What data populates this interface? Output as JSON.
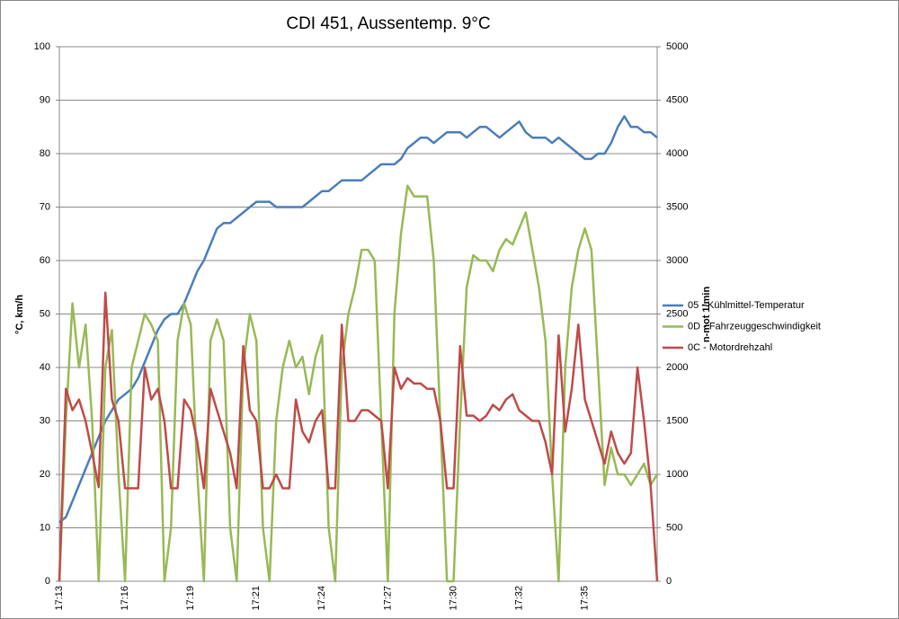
{
  "chart_data": {
    "type": "line",
    "title": "CDI 451, Aussentemp. 9°C",
    "y_label": "°C, km/h",
    "y2_label": "n-mot 1/min",
    "categories": [
      "17:13",
      null,
      null,
      null,
      null,
      null,
      null,
      null,
      null,
      null,
      "17:16",
      null,
      null,
      null,
      null,
      null,
      null,
      null,
      null,
      null,
      "17:19",
      null,
      null,
      null,
      null,
      null,
      null,
      null,
      null,
      null,
      "17:21",
      null,
      null,
      null,
      null,
      null,
      null,
      null,
      null,
      null,
      "17:24",
      null,
      null,
      null,
      null,
      null,
      null,
      null,
      null,
      null,
      "17:27",
      null,
      null,
      null,
      null,
      null,
      null,
      null,
      null,
      null,
      "17:30",
      null,
      null,
      null,
      null,
      null,
      null,
      null,
      null,
      null,
      "17:32",
      null,
      null,
      null,
      null,
      null,
      null,
      null,
      null,
      null,
      "17:35",
      null,
      null,
      null,
      null,
      null,
      null,
      null,
      null,
      null,
      null,
      null
    ],
    "ylim": [
      0,
      100
    ],
    "yticks": [
      0,
      10,
      20,
      30,
      40,
      50,
      60,
      70,
      80,
      90,
      100
    ],
    "y2lim": [
      0,
      5000
    ],
    "y2ticks": [
      0,
      500,
      1000,
      1500,
      2000,
      2500,
      3000,
      3500,
      4000,
      4500,
      5000
    ],
    "grid": true,
    "legend": "right",
    "series": [
      {
        "name": "05 - Kühlmittel-Temperatur",
        "color": "#4a7ebb",
        "values": [
          11,
          12,
          15,
          18,
          21,
          24,
          27,
          30,
          32,
          34,
          35,
          36,
          38,
          41,
          44,
          47,
          49,
          50,
          50,
          52,
          55,
          58,
          60,
          63,
          66,
          67,
          67,
          68,
          69,
          70,
          71,
          71,
          71,
          70,
          70,
          70,
          70,
          70,
          71,
          72,
          73,
          73,
          74,
          75,
          75,
          75,
          75,
          76,
          77,
          78,
          78,
          78,
          79,
          81,
          82,
          83,
          83,
          82,
          83,
          84,
          84,
          84,
          83,
          84,
          85,
          85,
          84,
          83,
          84,
          85,
          86,
          84,
          83,
          83,
          83,
          82,
          83,
          82,
          81,
          80,
          79,
          79,
          80,
          80,
          82,
          85,
          87,
          85,
          85,
          84,
          84,
          83
        ]
      },
      {
        "name": "0D - Fahrzeuggeschwindigkeit",
        "color": "#98b954",
        "values": [
          0,
          30,
          52,
          40,
          48,
          30,
          0,
          40,
          47,
          20,
          0,
          40,
          45,
          50,
          48,
          45,
          0,
          10,
          45,
          52,
          48,
          20,
          0,
          45,
          49,
          45,
          10,
          0,
          40,
          50,
          45,
          10,
          0,
          30,
          40,
          45,
          40,
          42,
          35,
          42,
          46,
          10,
          0,
          40,
          50,
          55,
          62,
          62,
          60,
          30,
          0,
          50,
          65,
          74,
          72,
          72,
          72,
          60,
          30,
          0,
          0,
          30,
          55,
          61,
          60,
          60,
          58,
          62,
          64,
          63,
          66,
          69,
          62,
          55,
          45,
          20,
          0,
          40,
          55,
          62,
          66,
          62,
          40,
          18,
          25,
          20,
          20,
          18,
          20,
          22,
          18,
          20
        ]
      },
      {
        "name": "0C - Motordrehzahl",
        "color": "#be4b48",
        "axis": "y2",
        "values": [
          0,
          1800,
          1600,
          1700,
          1500,
          1200,
          880,
          2700,
          1700,
          1500,
          870,
          870,
          870,
          2000,
          1700,
          1800,
          1500,
          870,
          870,
          1700,
          1600,
          1300,
          870,
          1800,
          1600,
          1400,
          1200,
          870,
          2200,
          1600,
          1500,
          870,
          870,
          1000,
          870,
          870,
          1700,
          1400,
          1300,
          1500,
          1600,
          870,
          870,
          2400,
          1500,
          1500,
          1600,
          1600,
          1550,
          1500,
          870,
          2000,
          1800,
          1900,
          1850,
          1850,
          1800,
          1800,
          1500,
          870,
          870,
          2200,
          1550,
          1550,
          1500,
          1550,
          1650,
          1600,
          1700,
          1750,
          1600,
          1550,
          1500,
          1500,
          1300,
          1000,
          2300,
          1400,
          1800,
          2400,
          1700,
          1500,
          1300,
          1100,
          1400,
          1200,
          1100,
          1200,
          2000,
          1500,
          900,
          0
        ]
      }
    ]
  }
}
